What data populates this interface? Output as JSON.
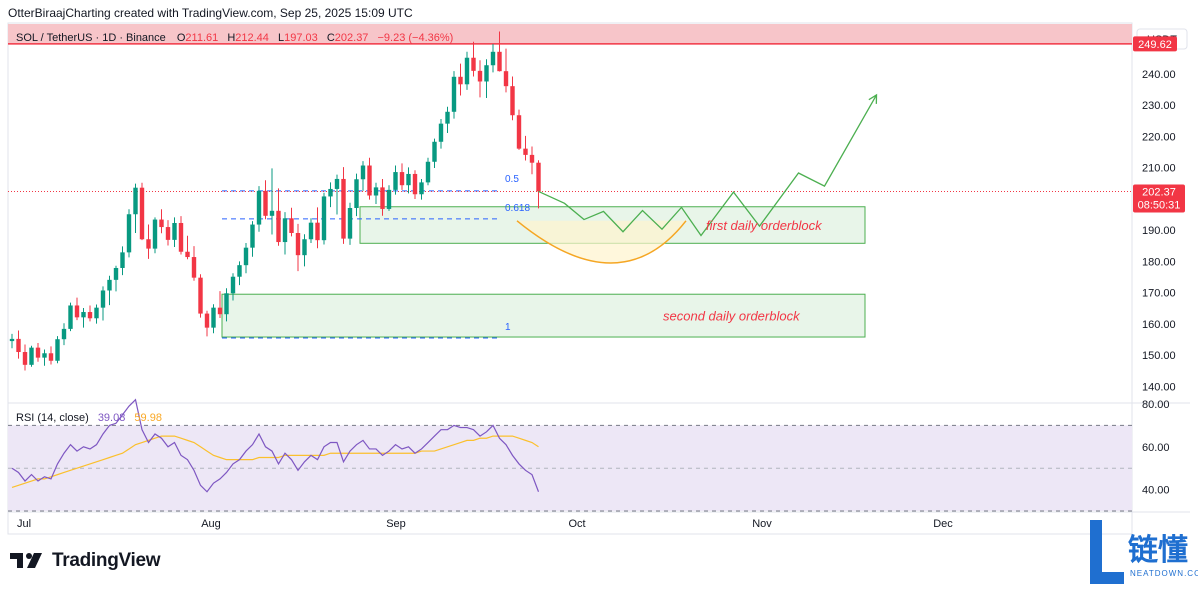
{
  "header": {
    "credit": "OtterBiraajCharting created with TradingView.com, Sep 25, 2025 15:09 UTC"
  },
  "legend": {
    "symbol": "SOL / TetherUS · 1D · Binance",
    "o_label": "O",
    "o_value": "211.61",
    "h_label": "H",
    "h_value": "212.44",
    "l_label": "L",
    "l_value": "197.03",
    "c_label": "C",
    "c_value": "202.37",
    "change": "−9.23 (−4.36%)"
  },
  "currency_button": "USDT",
  "price_tags": {
    "resistance": "249.62",
    "last_price": "202.37",
    "countdown": "08:50:31"
  },
  "annotations": {
    "fib_05": "0.5",
    "fib_0618": "0.618",
    "fib_1": "1",
    "first_ob": "first daily orderblock",
    "second_ob": "second daily orderblock"
  },
  "rsi_legend": {
    "label": "RSI (14, close)",
    "rsi_value": "39.08",
    "ma_value": "59.98"
  },
  "x_axis_labels": [
    "Jul",
    "Aug",
    "Sep",
    "Oct",
    "Nov",
    "Dec"
  ],
  "footer": {
    "brand": "TradingView"
  },
  "watermark": {
    "cn": "链懂",
    "en": "NEATDOWN.COM"
  },
  "colors": {
    "up": "#089981",
    "down": "#f23645",
    "resistance_zone": "#f7c5c9",
    "orderblock_fill": "#e8f5e9",
    "orderblock_stroke": "#4caf50",
    "fib": "#2962ff",
    "rsi_line": "#7e57c2",
    "rsi_ma": "#fbc02d",
    "rsi_band": "#ede7f6",
    "projection": "#4caf50",
    "arc": "#f5a623"
  },
  "chart_data": [
    {
      "type": "candlestick",
      "title": "SOL / TetherUS · 1D · Binance",
      "ylim": [
        135,
        256
      ],
      "y_ticks": [
        140,
        150,
        160,
        170,
        180,
        190,
        200,
        210,
        220,
        230,
        240
      ],
      "x_ticks": [
        "Jul",
        "Aug",
        "Sep",
        "Oct",
        "Nov",
        "Dec"
      ],
      "resistance_level": 249.62,
      "last_price": 202.37,
      "fib_levels": [
        {
          "label": "0.5",
          "price": 202.6
        },
        {
          "label": "0.618",
          "price": 193.6
        },
        {
          "label": "1",
          "price": 155.5
        }
      ],
      "orderblocks": [
        {
          "label": "first daily orderblock",
          "top": 197.5,
          "bottom": 185.8
        },
        {
          "label": "second daily orderblock",
          "top": 169.5,
          "bottom": 155.8
        }
      ],
      "candles": [
        [
          154.5,
          156.8,
          152.2,
          155.2
        ],
        [
          155.2,
          157.9,
          148.9,
          151.0
        ],
        [
          151.0,
          153.4,
          145.1,
          146.9
        ],
        [
          146.9,
          153.0,
          146.3,
          152.4
        ],
        [
          152.4,
          153.9,
          147.9,
          149.2
        ],
        [
          149.2,
          151.8,
          146.6,
          150.6
        ],
        [
          150.6,
          152.8,
          147.0,
          148.2
        ],
        [
          148.2,
          156.1,
          147.4,
          155.1
        ],
        [
          155.1,
          160.2,
          153.2,
          158.4
        ],
        [
          158.4,
          166.8,
          157.7,
          165.9
        ],
        [
          165.9,
          168.4,
          161.2,
          162.1
        ],
        [
          162.1,
          165.1,
          158.8,
          163.8
        ],
        [
          163.8,
          165.9,
          160.8,
          161.8
        ],
        [
          161.8,
          166.2,
          160.1,
          165.2
        ],
        [
          165.2,
          172.0,
          161.1,
          170.7
        ],
        [
          170.7,
          175.4,
          166.0,
          174.1
        ],
        [
          174.1,
          178.6,
          170.4,
          177.9
        ],
        [
          177.9,
          184.8,
          175.6,
          182.9
        ],
        [
          182.9,
          196.7,
          181.3,
          195.1
        ],
        [
          195.1,
          204.9,
          189.1,
          203.6
        ],
        [
          203.6,
          205.2,
          186.8,
          187.1
        ],
        [
          187.1,
          191.8,
          180.8,
          184.1
        ],
        [
          184.1,
          194.1,
          182.6,
          193.4
        ],
        [
          193.4,
          196.7,
          189.0,
          191.0
        ],
        [
          191.0,
          193.2,
          185.1,
          186.9
        ],
        [
          186.9,
          194.1,
          184.6,
          192.3
        ],
        [
          192.3,
          194.5,
          182.2,
          183.1
        ],
        [
          183.1,
          188.2,
          180.7,
          181.4
        ],
        [
          181.4,
          184.9,
          173.8,
          174.8
        ],
        [
          174.8,
          175.9,
          162.0,
          163.3
        ],
        [
          163.3,
          164.2,
          156.0,
          158.8
        ],
        [
          158.8,
          166.3,
          157.0,
          165.2
        ],
        [
          165.2,
          170.5,
          161.9,
          163.1
        ],
        [
          163.1,
          171.4,
          160.8,
          169.8
        ],
        [
          169.8,
          176.2,
          167.5,
          175.1
        ],
        [
          175.1,
          180.0,
          172.4,
          178.8
        ],
        [
          178.8,
          185.9,
          176.2,
          184.4
        ],
        [
          184.4,
          192.9,
          181.5,
          191.8
        ],
        [
          191.8,
          204.1,
          189.5,
          202.6
        ],
        [
          202.6,
          206.0,
          193.5,
          194.6
        ],
        [
          194.6,
          209.8,
          188.6,
          196.2
        ],
        [
          196.2,
          203.4,
          185.0,
          186.2
        ],
        [
          186.2,
          195.8,
          182.2,
          193.8
        ],
        [
          193.8,
          197.2,
          188.0,
          189.1
        ],
        [
          189.1,
          192.0,
          176.9,
          182.0
        ],
        [
          182.0,
          188.7,
          178.4,
          187.1
        ],
        [
          187.1,
          193.8,
          185.9,
          192.4
        ],
        [
          192.4,
          197.3,
          184.2,
          186.8
        ],
        [
          186.8,
          202.0,
          185.4,
          200.8
        ],
        [
          200.8,
          205.3,
          197.4,
          203.2
        ],
        [
          203.2,
          207.8,
          195.0,
          206.4
        ],
        [
          206.4,
          210.2,
          185.6,
          187.3
        ],
        [
          187.3,
          198.8,
          185.3,
          197.1
        ],
        [
          197.1,
          208.1,
          194.5,
          206.3
        ],
        [
          206.3,
          212.1,
          202.6,
          210.7
        ],
        [
          210.7,
          213.2,
          199.8,
          201.1
        ],
        [
          201.1,
          205.2,
          198.4,
          203.7
        ],
        [
          203.7,
          206.4,
          194.6,
          196.8
        ],
        [
          196.8,
          204.4,
          196.2,
          202.9
        ],
        [
          202.9,
          210.7,
          201.4,
          208.6
        ],
        [
          208.6,
          211.4,
          202.9,
          204.4
        ],
        [
          204.4,
          210.1,
          201.8,
          208.0
        ],
        [
          208.0,
          209.2,
          200.0,
          201.5
        ],
        [
          201.5,
          206.4,
          199.8,
          205.3
        ],
        [
          205.3,
          213.2,
          204.4,
          211.9
        ],
        [
          211.9,
          219.3,
          209.9,
          218.3
        ],
        [
          218.3,
          225.6,
          216.1,
          224.1
        ],
        [
          224.1,
          229.5,
          221.1,
          227.9
        ],
        [
          227.9,
          240.9,
          225.7,
          239.1
        ],
        [
          239.1,
          243.3,
          233.1,
          236.7
        ],
        [
          236.7,
          247.1,
          234.9,
          245.2
        ],
        [
          245.2,
          250.3,
          239.2,
          241.0
        ],
        [
          241.0,
          244.4,
          232.5,
          237.6
        ],
        [
          237.6,
          244.7,
          232.3,
          242.8
        ],
        [
          242.8,
          249.6,
          240.5,
          247.1
        ],
        [
          247.1,
          253.6,
          240.8,
          240.9
        ],
        [
          240.9,
          248.1,
          234.1,
          236.1
        ],
        [
          236.1,
          239.2,
          225.2,
          226.8
        ],
        [
          226.8,
          228.6,
          215.7,
          216.1
        ],
        [
          216.1,
          220.2,
          212.3,
          214.1
        ],
        [
          214.1,
          216.8,
          207.9,
          211.6
        ],
        [
          211.6,
          212.4,
          197.0,
          202.4
        ]
      ],
      "projection_path": [
        [
          202.4,
          0
        ],
        [
          198.6,
          4
        ],
        [
          193.4,
          7
        ],
        [
          196.0,
          10
        ],
        [
          189.5,
          13
        ],
        [
          196.3,
          16
        ],
        [
          190.3,
          19
        ],
        [
          197.3,
          22
        ],
        [
          188.3,
          25
        ],
        [
          202.2,
          30
        ],
        [
          191.3,
          34
        ],
        [
          208.3,
          40
        ],
        [
          204.1,
          44
        ],
        [
          233.3,
          52
        ]
      ]
    },
    {
      "type": "line",
      "title": "RSI (14, close)",
      "ylim": [
        30,
        80
      ],
      "y_ticks": [
        40,
        60,
        80
      ],
      "bands": [
        30,
        50,
        70
      ],
      "series": [
        {
          "name": "RSI (14, close)",
          "values": [
            50,
            48,
            44,
            47,
            44,
            46,
            45,
            52,
            57,
            61,
            58,
            60,
            59,
            61,
            66,
            70,
            71,
            75,
            79,
            82,
            68,
            62,
            66,
            64,
            60,
            62,
            56,
            54,
            49,
            42,
            39,
            43,
            45,
            48,
            52,
            54,
            58,
            61,
            66,
            60,
            58,
            52,
            57,
            54,
            49,
            53,
            56,
            54,
            60,
            62,
            62,
            53,
            58,
            61,
            63,
            59,
            59,
            56,
            58,
            61,
            59,
            60,
            57,
            59,
            62,
            65,
            68,
            68,
            70,
            69,
            69,
            68,
            65,
            67,
            70,
            64,
            61,
            56,
            52,
            49,
            47,
            39
          ]
        },
        {
          "name": "MA",
          "values": [
            41,
            42,
            43,
            44,
            45,
            45,
            46,
            47,
            48,
            49,
            50,
            51,
            52,
            53,
            54,
            55,
            56,
            57,
            59,
            61,
            62,
            63,
            64,
            65,
            65,
            65,
            64,
            63,
            62,
            60,
            58,
            56,
            55,
            54,
            54,
            54,
            54,
            54,
            55,
            55,
            55,
            55,
            56,
            56,
            56,
            56,
            56,
            56,
            56,
            57,
            57,
            57,
            57,
            57,
            57,
            57,
            57,
            57,
            57,
            57,
            57,
            57,
            57,
            58,
            58,
            58,
            59,
            60,
            61,
            62,
            63,
            63,
            64,
            64,
            65,
            65,
            65,
            65,
            64,
            63,
            62,
            60
          ]
        }
      ]
    }
  ]
}
